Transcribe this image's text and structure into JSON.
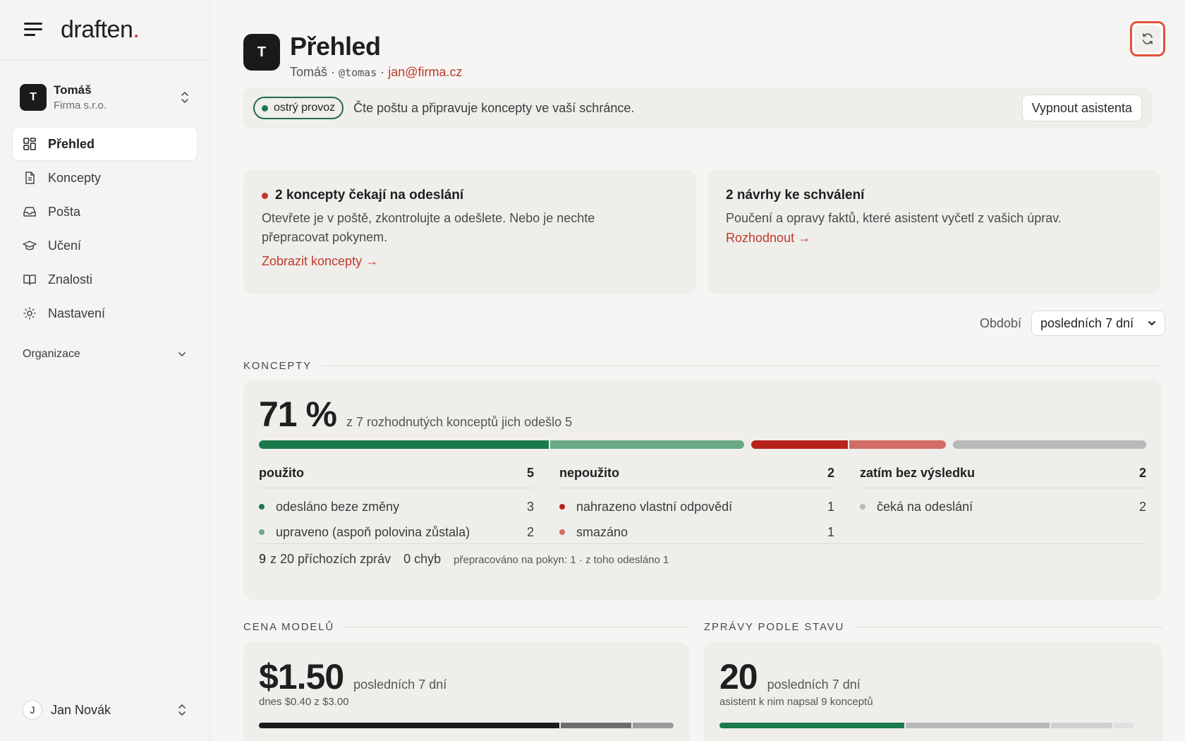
{
  "brand": {
    "name": "draften",
    "dot": "."
  },
  "account": {
    "initial": "T",
    "name": "Tomáš",
    "org": "Firma s.r.o."
  },
  "nav": [
    {
      "label": "Přehled",
      "icon": "dashboard-icon",
      "active": true
    },
    {
      "label": "Koncepty",
      "icon": "document-icon"
    },
    {
      "label": "Pošta",
      "icon": "inbox-icon"
    },
    {
      "label": "Učení",
      "icon": "graduation-cap-icon"
    },
    {
      "label": "Znalosti",
      "icon": "book-icon"
    },
    {
      "label": "Nastavení",
      "icon": "gear-icon"
    }
  ],
  "organizations": {
    "label": "Organizace"
  },
  "user": {
    "initial": "J",
    "name": "Jan Novák"
  },
  "header": {
    "initial": "T",
    "title": "Přehled",
    "name": "Tomáš",
    "separator": "·",
    "handle": "@tomas",
    "email": "jan@firma.cz"
  },
  "status": {
    "badge": "ostrý provoz",
    "text": "Čte poštu a připravuje koncepty ve vaší schránce.",
    "button": "Vypnout asistenta"
  },
  "cards": {
    "drafts": {
      "title": "2 koncepty čekají na odeslání",
      "body": "Otevřete je v poště, zkontrolujte a odešlete. Nebo je nechte přepracovat pokynem.",
      "link": "Zobrazit koncepty →"
    },
    "proposals": {
      "title": "2 návrhy ke schválení",
      "body": "Poučení a opravy faktů, které asistent vyčetl z vašich úprav.",
      "link": "Rozhodnout →"
    }
  },
  "period": {
    "label": "Období",
    "selected": "posledních 7 dní"
  },
  "concepts": {
    "section": "KONCEPTY",
    "percent": "71 %",
    "summary": "z 7 rozhodnutých konceptů jich odešlo 5",
    "bar": [
      {
        "value": 3,
        "color": "#1b7a4a"
      },
      {
        "value": 2,
        "color": "#6aaa86"
      },
      {
        "value": 1,
        "color": "#b8221b"
      },
      {
        "value": 1,
        "color": "#d36c66"
      },
      {
        "value": 2,
        "color": "#b9b9b9"
      }
    ],
    "groups": [
      {
        "title": "použito",
        "total": "5",
        "rows": [
          {
            "label": "odesláno beze změny",
            "value": "3",
            "color": "#1b7a4a"
          },
          {
            "label": "upraveno (aspoň polovina zůstala)",
            "value": "2",
            "color": "#6aaa86"
          }
        ]
      },
      {
        "title": "nepoužito",
        "total": "2",
        "rows": [
          {
            "label": "nahrazeno vlastní odpovědí",
            "value": "1",
            "color": "#b8221b"
          },
          {
            "label": "smazáno",
            "value": "1",
            "color": "#d36c66"
          }
        ]
      },
      {
        "title": "zatím bez výsledku",
        "total": "2",
        "rows": [
          {
            "label": "čeká na odeslání",
            "value": "2",
            "color": "#b9b9b9"
          }
        ]
      }
    ],
    "footer": {
      "incoming_num": "9",
      "incoming_text": "z 20 příchozích zpráv",
      "errors": "0 chyb",
      "reworked": "přepracováno na pokyn: 1 · z toho odesláno 1"
    }
  },
  "cost": {
    "section": "CENA MODELŮ",
    "amount": "$1.50",
    "period": "posledních 7 dní",
    "sub": "dnes $0.40 z $3.00",
    "bar": [
      {
        "value": 0.73,
        "color": "#1a1a1a"
      },
      {
        "value": 0.17,
        "color": "#6d6d6d"
      },
      {
        "value": 0.1,
        "color": "#9a9a9a"
      }
    ]
  },
  "messages": {
    "section": "ZPRÁVY PODLE STAVU",
    "count": "20",
    "period": "posledních 7 dní",
    "sub": "asistent k nim napsal 9 konceptů",
    "bar": [
      {
        "value": 9,
        "color": "#1b7a4a"
      },
      {
        "value": 7,
        "color": "#b9b9b9"
      },
      {
        "value": 3,
        "color": "#d0d0d0"
      },
      {
        "value": 1,
        "color": "#e0e0e0"
      }
    ]
  }
}
